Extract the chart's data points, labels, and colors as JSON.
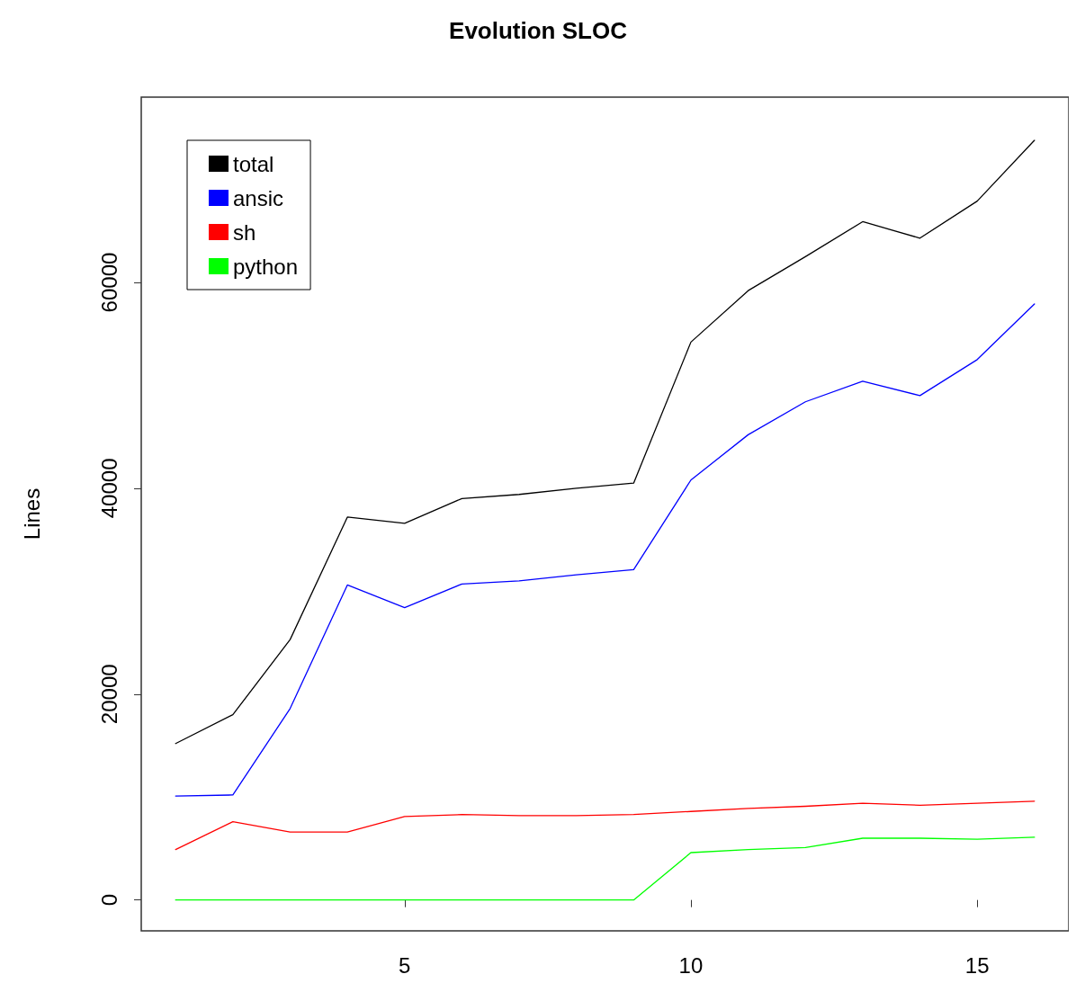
{
  "chart_data": {
    "type": "line",
    "title": "Evolution SLOC",
    "ylabel": "Lines",
    "x": [
      1,
      2,
      3,
      4,
      5,
      6,
      7,
      8,
      9,
      10,
      11,
      12,
      13,
      14,
      15,
      16
    ],
    "series": [
      {
        "name": "total",
        "color": "#000000",
        "values": [
          15200,
          18000,
          25300,
          37200,
          36600,
          39000,
          39400,
          40000,
          40500,
          54200,
          59200,
          62500,
          65900,
          64300,
          67900,
          73800
        ]
      },
      {
        "name": "ansic",
        "color": "#0000ff",
        "values": [
          10100,
          10200,
          18600,
          30600,
          28400,
          30700,
          31000,
          31600,
          32100,
          40800,
          45200,
          48400,
          50400,
          49000,
          52500,
          57900
        ]
      },
      {
        "name": "sh",
        "color": "#ff0000",
        "values": [
          4900,
          7600,
          6600,
          6600,
          8100,
          8300,
          8200,
          8200,
          8300,
          8600,
          8900,
          9100,
          9400,
          9200,
          9400,
          9600
        ]
      },
      {
        "name": "python",
        "color": "#00ff00",
        "values": [
          0,
          0,
          0,
          0,
          0,
          0,
          0,
          0,
          0,
          4600,
          4900,
          5100,
          6000,
          6000,
          5900,
          6100
        ]
      }
    ],
    "xlim": [
      0.4,
      16.6
    ],
    "xticks": [
      5,
      10,
      15
    ],
    "ylim": [
      -3000,
      78000
    ],
    "yticks": [
      0,
      20000,
      40000,
      60000
    ],
    "grid": false,
    "legend": "top left",
    "marker": "none",
    "line_style": "solid"
  }
}
